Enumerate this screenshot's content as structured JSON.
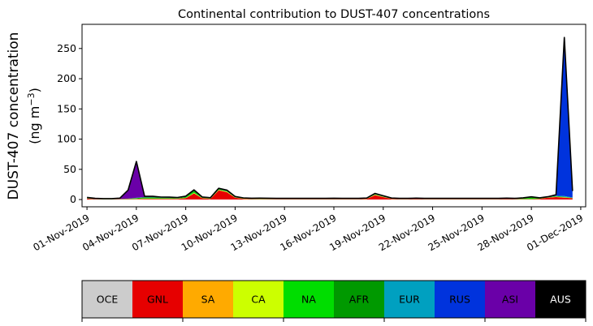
{
  "chart_data": {
    "type": "area",
    "title": "Continental contribution to DUST-407 concentrations",
    "ylabel_line1": "DUST-407 concentration",
    "ylabel_line2_prefix": "(ng m",
    "ylabel_line2_sup": "−3",
    "ylabel_line2_suffix": ")",
    "xlabel": "",
    "ylim": [
      -12,
      290
    ],
    "xlim": [
      -0.3,
      30.3
    ],
    "yticks": [
      0,
      50,
      100,
      150,
      200,
      250
    ],
    "xticks": [
      {
        "pos": 0,
        "label": "01-Nov-2019"
      },
      {
        "pos": 3,
        "label": "04-Nov-2019"
      },
      {
        "pos": 6,
        "label": "07-Nov-2019"
      },
      {
        "pos": 9,
        "label": "10-Nov-2019"
      },
      {
        "pos": 12,
        "label": "13-Nov-2019"
      },
      {
        "pos": 15,
        "label": "16-Nov-2019"
      },
      {
        "pos": 18,
        "label": "19-Nov-2019"
      },
      {
        "pos": 21,
        "label": "22-Nov-2019"
      },
      {
        "pos": 24,
        "label": "25-Nov-2019"
      },
      {
        "pos": 27,
        "label": "28-Nov-2019"
      },
      {
        "pos": 30,
        "label": "01-Dec-2019"
      }
    ],
    "x": [
      0,
      0.5,
      1,
      1.5,
      2,
      2.5,
      3,
      3.5,
      4,
      4.5,
      5,
      5.5,
      6,
      6.5,
      7,
      7.5,
      8,
      8.5,
      9,
      9.5,
      10,
      10.5,
      11,
      11.5,
      12,
      12.5,
      13,
      13.5,
      14,
      14.5,
      15,
      15.5,
      16,
      16.5,
      17,
      17.5,
      18,
      18.5,
      19,
      19.5,
      20,
      20.5,
      21,
      21.5,
      22,
      22.5,
      23,
      23.5,
      24,
      24.5,
      25,
      25.5,
      26,
      26.5,
      27,
      27.5,
      28,
      28.5,
      29,
      29.5
    ],
    "series": [
      {
        "name": "OCE",
        "color": "#cccccc",
        "values": [
          0.1,
          0.1,
          0.1,
          0.1,
          0.1,
          0.1,
          0.1,
          0.1,
          0.1,
          0.1,
          0.1,
          0.1,
          0.1,
          0.1,
          0.1,
          0.1,
          0.1,
          0.1,
          0.1,
          0.1,
          0.1,
          0.1,
          0.1,
          0.1,
          0.1,
          0.1,
          0.1,
          0.1,
          0.1,
          0.1,
          0.1,
          0.1,
          0.1,
          0.1,
          0.1,
          0.1,
          0.1,
          0.1,
          0.1,
          0.1,
          0.1,
          0.1,
          0.1,
          0.1,
          0.1,
          0.1,
          0.1,
          0.1,
          0.1,
          0.1,
          0.1,
          0.1,
          0.1,
          0.1,
          0.1,
          0.1,
          0.1,
          0.1,
          0.1,
          0.1
        ]
      },
      {
        "name": "GNL",
        "color": "#e60000",
        "values": [
          1.5,
          0.5,
          0.3,
          0.3,
          0.5,
          0.5,
          0.5,
          1,
          1,
          1,
          1,
          1,
          2,
          10,
          2,
          1,
          15,
          12,
          3,
          1,
          0.5,
          0.5,
          0.5,
          0.5,
          0.5,
          0.5,
          0.5,
          0.5,
          0.5,
          0.5,
          0.5,
          0.5,
          0.5,
          0.5,
          1,
          7,
          4,
          1,
          0.5,
          0.5,
          1,
          0.5,
          0.5,
          0.5,
          0.5,
          0.5,
          0.5,
          0.5,
          0.5,
          0.5,
          0.5,
          1,
          0.5,
          0.5,
          0.5,
          1,
          3,
          4,
          3,
          2
        ]
      },
      {
        "name": "SA",
        "color": "#ffaa00",
        "values": [
          0.2,
          0.1,
          0.1,
          0.1,
          0.1,
          0.1,
          0.1,
          0.2,
          0.2,
          0.2,
          0.2,
          0.2,
          0.2,
          0.5,
          0.2,
          0.2,
          0.5,
          0.5,
          0.2,
          0.2,
          0.1,
          0.1,
          0.1,
          0.1,
          0.1,
          0.1,
          0.1,
          0.1,
          0.1,
          0.1,
          0.1,
          0.1,
          0.1,
          0.1,
          0.2,
          0.5,
          0.3,
          0.2,
          0.1,
          0.1,
          0.1,
          0.1,
          0.1,
          0.1,
          0.1,
          0.1,
          0.1,
          0.1,
          0.1,
          0.1,
          0.1,
          0.1,
          0.1,
          0.1,
          0.1,
          0.1,
          0.2,
          0.3,
          0.3,
          0.2
        ]
      },
      {
        "name": "CA",
        "color": "#ccff00",
        "values": [
          0.2,
          0.1,
          0.1,
          0.1,
          0.1,
          0.2,
          0.3,
          0.5,
          0.5,
          0.3,
          0.2,
          0.2,
          0.3,
          0.5,
          0.3,
          0.3,
          0.5,
          0.5,
          0.3,
          0.2,
          0.3,
          0.5,
          0.5,
          0.3,
          0.2,
          0.3,
          0.2,
          0.2,
          0.2,
          0.3,
          0.5,
          0.3,
          0.2,
          0.2,
          0.2,
          0.5,
          0.3,
          0.2,
          0.2,
          0.2,
          0.2,
          0.2,
          0.2,
          0.2,
          0.2,
          0.2,
          0.2,
          0.2,
          0.2,
          0.2,
          0.2,
          0.2,
          0.2,
          0.2,
          0.2,
          0.2,
          0.2,
          0.3,
          0.3,
          0.2
        ]
      },
      {
        "name": "NA",
        "color": "#00dd00",
        "values": [
          0.2,
          0.1,
          0.1,
          0.1,
          0.1,
          0.2,
          1,
          1,
          1,
          1,
          1,
          0.5,
          1,
          2,
          0.5,
          0.3,
          0.5,
          0.5,
          0.3,
          0.2,
          0.2,
          0.2,
          0.2,
          0.2,
          0.2,
          0.2,
          0.2,
          0.2,
          0.2,
          0.2,
          0.2,
          0.2,
          0.2,
          0.2,
          0.2,
          0.5,
          0.3,
          0.2,
          0.2,
          0.2,
          0.2,
          0.2,
          0.2,
          0.2,
          0.2,
          0.2,
          0.2,
          0.2,
          0.2,
          0.2,
          0.2,
          0.2,
          0.2,
          1,
          2,
          0.5,
          0.3,
          0.5,
          0.5,
          0.3
        ]
      },
      {
        "name": "AFR",
        "color": "#009900",
        "values": [
          0.3,
          0.2,
          0.2,
          0.2,
          0.2,
          0.3,
          0.5,
          1,
          1,
          0.5,
          0.5,
          0.5,
          1,
          2,
          0.5,
          0.5,
          1,
          1,
          0.5,
          0.5,
          0.5,
          0.5,
          0.3,
          0.3,
          0.3,
          0.3,
          0.3,
          0.3,
          0.3,
          0.3,
          0.3,
          0.3,
          0.3,
          0.3,
          0.3,
          0.5,
          0.5,
          0.3,
          0.3,
          0.3,
          0.3,
          0.3,
          0.3,
          0.3,
          0.3,
          0.3,
          0.3,
          0.3,
          0.3,
          0.3,
          0.3,
          0.3,
          0.3,
          0.5,
          1,
          0.5,
          0.3,
          0.5,
          0.5,
          0.3
        ]
      },
      {
        "name": "EUR",
        "color": "#00a0c0",
        "values": [
          0.2,
          0.1,
          0.1,
          0.1,
          0.1,
          0.1,
          0.2,
          0.2,
          0.2,
          0.2,
          0.2,
          0.2,
          0.2,
          0.2,
          0.1,
          0.1,
          0.2,
          0.2,
          0.1,
          0.1,
          0.1,
          0.1,
          0.1,
          0.1,
          0.1,
          0.1,
          0.1,
          0.1,
          0.1,
          0.1,
          0.1,
          0.1,
          0.1,
          0.1,
          0.1,
          0.2,
          0.2,
          0.1,
          0.1,
          0.1,
          0.1,
          0.1,
          0.1,
          0.1,
          0.1,
          0.1,
          0.1,
          0.1,
          0.1,
          0.1,
          0.1,
          0.1,
          0.1,
          0.1,
          0.2,
          0.1,
          0.1,
          0.5,
          1,
          0.3
        ]
      },
      {
        "name": "RUS",
        "color": "#0033dd",
        "values": [
          0.2,
          0.1,
          0.1,
          0.1,
          0.1,
          0.1,
          0.2,
          0.2,
          0.2,
          0.2,
          0.2,
          0.2,
          0.2,
          0.2,
          0.1,
          0.1,
          0.2,
          0.2,
          0.1,
          0.1,
          0.1,
          0.1,
          0.1,
          0.1,
          0.1,
          0.1,
          0.1,
          0.1,
          0.1,
          0.1,
          0.1,
          0.1,
          0.1,
          0.1,
          0.1,
          0.2,
          0.2,
          0.1,
          0.1,
          0.1,
          0.1,
          0.1,
          0.1,
          0.1,
          0.1,
          0.1,
          0.1,
          0.1,
          0.1,
          0.1,
          0.1,
          0.1,
          0.1,
          0.1,
          0.1,
          0.1,
          0.1,
          1,
          260,
          10
        ]
      },
      {
        "name": "ASI",
        "color": "#6a00a8",
        "values": [
          0.5,
          0.5,
          0.3,
          0.3,
          1,
          14,
          60,
          1,
          1,
          0.5,
          0.5,
          0.5,
          0.5,
          0.5,
          0.3,
          0.3,
          0.5,
          0.5,
          0.3,
          0.2,
          0.2,
          0.2,
          0.2,
          0.2,
          0.2,
          0.2,
          0.2,
          0.2,
          0.2,
          0.2,
          0.2,
          0.2,
          0.2,
          0.2,
          0.2,
          0.5,
          0.3,
          0.2,
          0.2,
          0.2,
          0.2,
          0.2,
          0.2,
          0.2,
          0.2,
          0.2,
          0.2,
          0.2,
          0.2,
          0.2,
          0.2,
          0.2,
          0.2,
          0.2,
          0.2,
          0.2,
          0.2,
          0.5,
          2,
          0.5
        ]
      },
      {
        "name": "AUS",
        "color": "#000000",
        "values": [
          0.2,
          0.1,
          0.1,
          0.1,
          0.1,
          0.1,
          0.1,
          0.1,
          0.1,
          0.1,
          0.1,
          0.1,
          0.1,
          0.1,
          0.1,
          0.1,
          0.1,
          0.1,
          0.1,
          0.1,
          0.1,
          0.1,
          0.1,
          0.1,
          0.1,
          0.1,
          0.1,
          0.1,
          0.1,
          0.1,
          0.1,
          0.1,
          0.1,
          0.1,
          0.1,
          0.1,
          0.1,
          0.1,
          0.1,
          0.1,
          0.1,
          0.1,
          0.1,
          0.1,
          0.1,
          0.1,
          0.1,
          0.1,
          0.1,
          0.1,
          0.1,
          0.1,
          0.1,
          0.1,
          0.1,
          0.1,
          0.1,
          0.1,
          0.5,
          0.2
        ]
      }
    ],
    "legend": [
      {
        "label": "OCE",
        "color": "#cccccc",
        "text_color": "#000000"
      },
      {
        "label": "GNL",
        "color": "#e60000",
        "text_color": "#000000"
      },
      {
        "label": "SA",
        "color": "#ffaa00",
        "text_color": "#000000"
      },
      {
        "label": "CA",
        "color": "#ccff00",
        "text_color": "#000000"
      },
      {
        "label": "NA",
        "color": "#00dd00",
        "text_color": "#000000"
      },
      {
        "label": "AFR",
        "color": "#009900",
        "text_color": "#000000"
      },
      {
        "label": "EUR",
        "color": "#00a0c0",
        "text_color": "#000000"
      },
      {
        "label": "RUS",
        "color": "#0033dd",
        "text_color": "#000000"
      },
      {
        "label": "ASI",
        "color": "#6a00a8",
        "text_color": "#000000"
      },
      {
        "label": "AUS",
        "color": "#000000",
        "text_color": "#ffffff"
      }
    ],
    "legend_placement": "bottom",
    "grid": false
  }
}
